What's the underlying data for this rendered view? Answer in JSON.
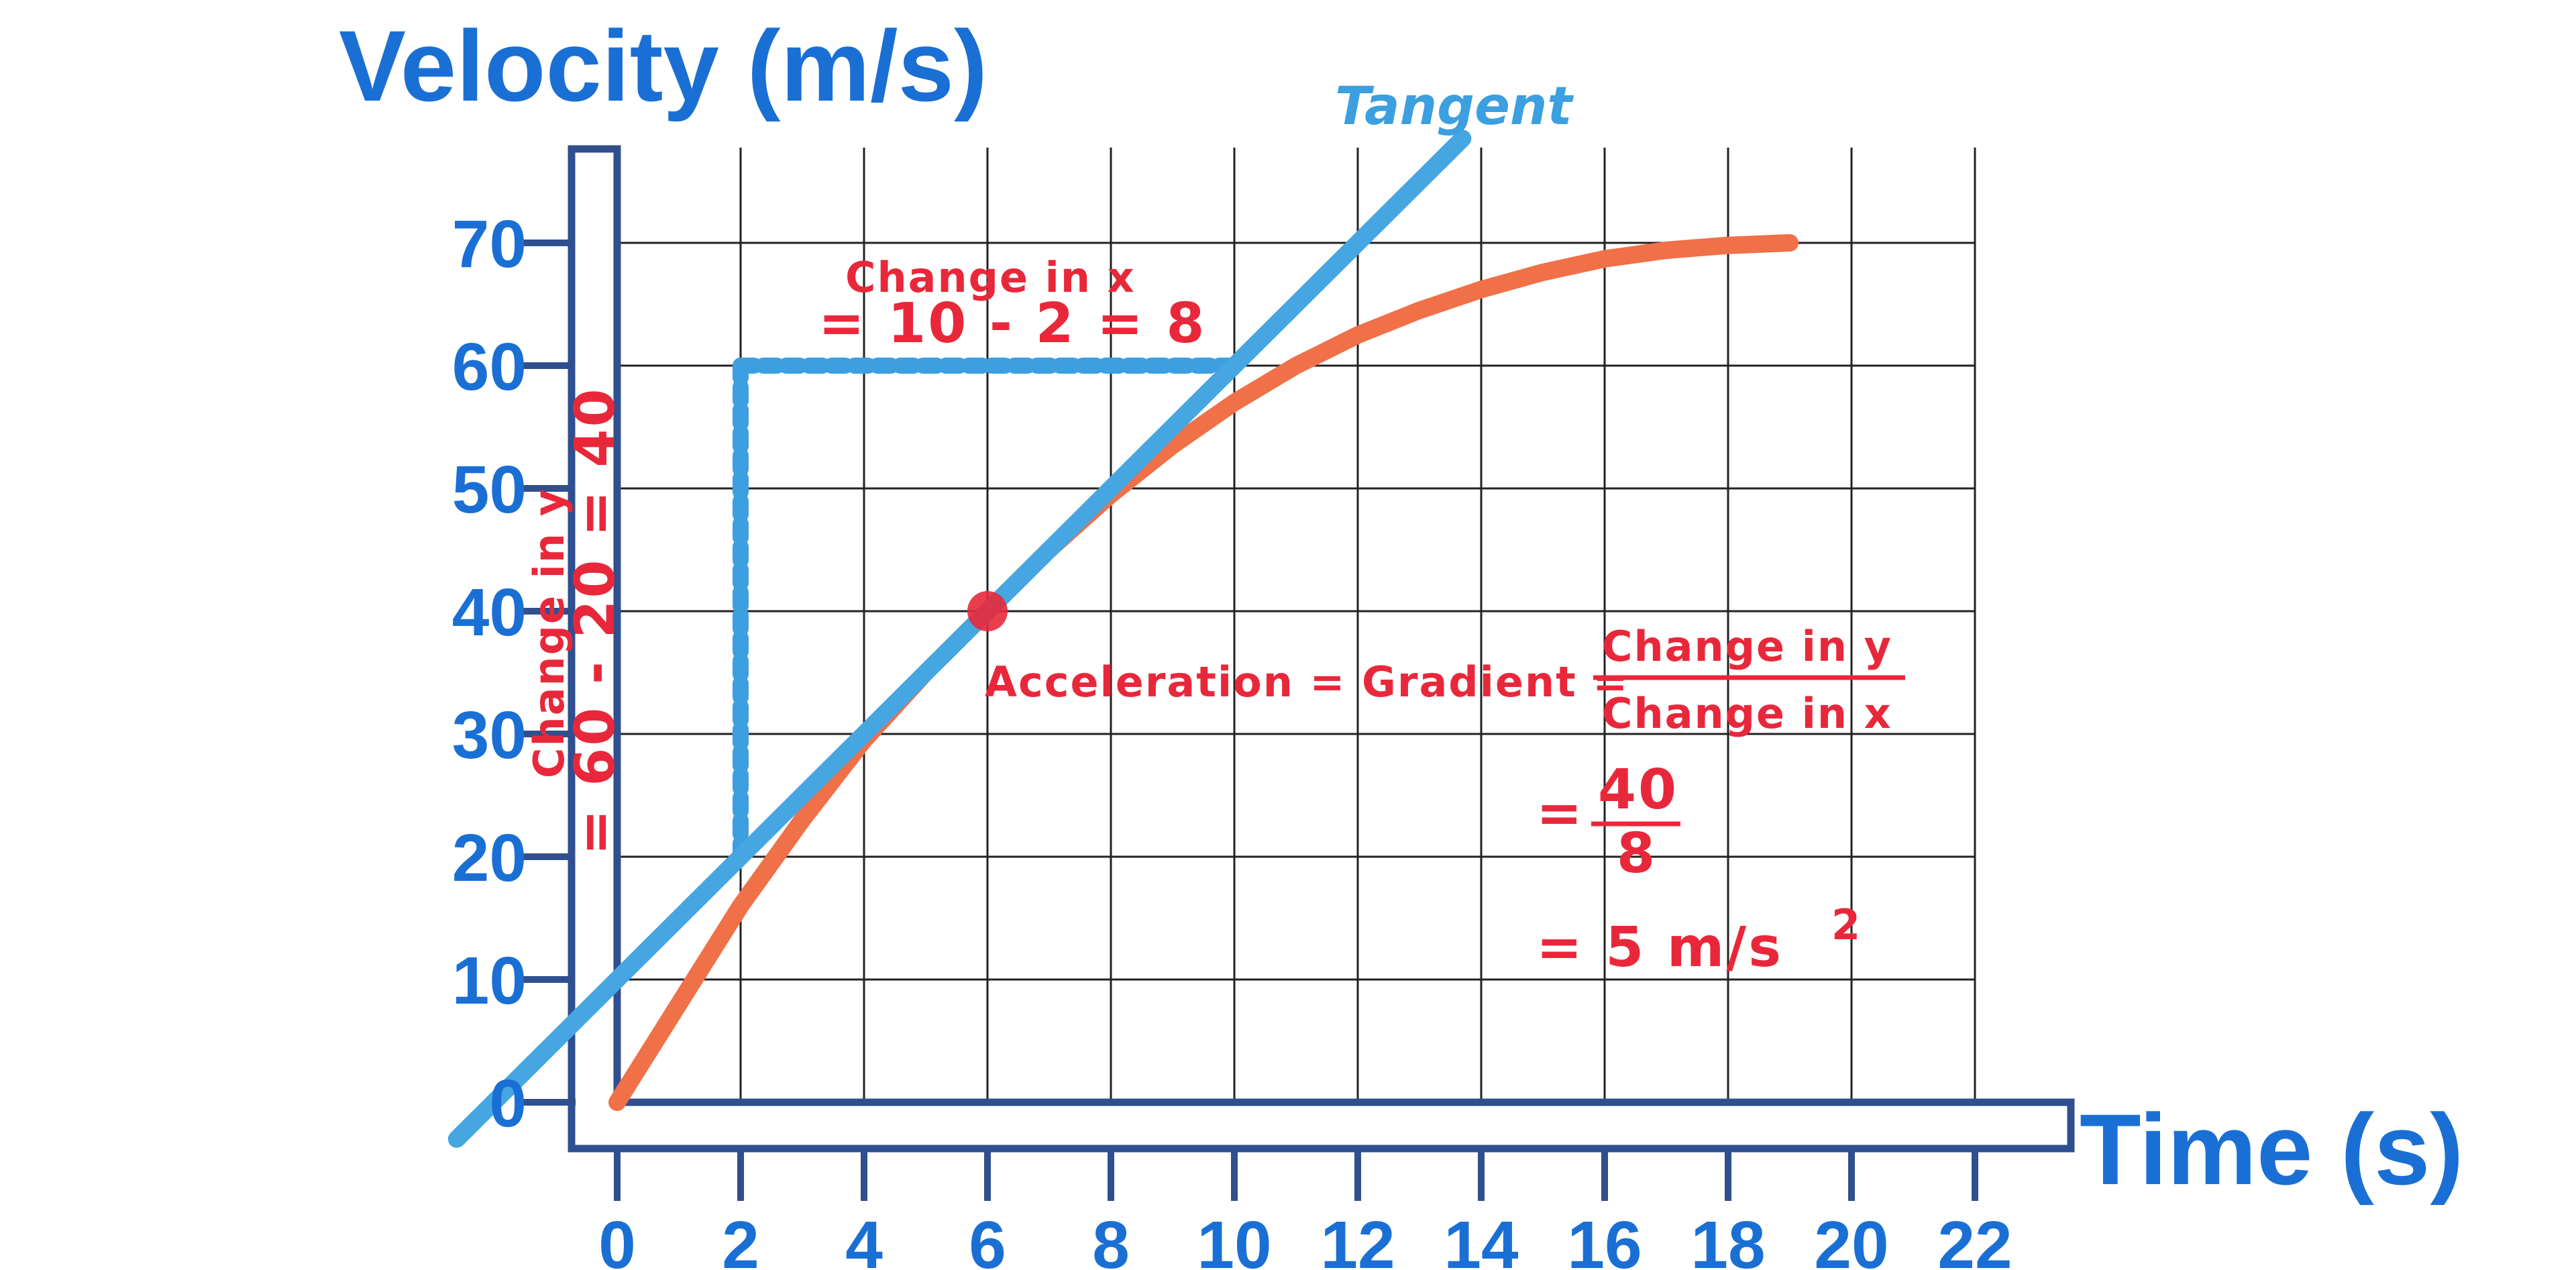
{
  "chart_data": {
    "type": "line",
    "xlabel": "Time (s)",
    "ylabel": "Velocity (m/s)",
    "xlim": [
      0,
      22
    ],
    "ylim": [
      0,
      70
    ],
    "x_ticks": [
      "0",
      "2",
      "4",
      "6",
      "8",
      "10",
      "12",
      "14",
      "16",
      "18",
      "20",
      "22"
    ],
    "y_ticks": [
      "0",
      "10",
      "20",
      "30",
      "40",
      "50",
      "60",
      "70"
    ],
    "grid": true,
    "series": [
      {
        "kind": "curve",
        "color": "#f07048",
        "x": [
          0,
          1,
          2,
          3,
          4,
          5,
          6,
          7,
          8,
          9,
          10,
          11,
          12,
          13,
          14,
          15,
          16,
          17,
          18,
          19
        ],
        "y": [
          0,
          8,
          16,
          23,
          29.5,
          35,
          40,
          45,
          49.5,
          53.5,
          57,
          60,
          62.5,
          64.5,
          66.2,
          67.6,
          68.7,
          69.4,
          69.8,
          70
        ]
      },
      {
        "kind": "tangent",
        "name": "Tangent",
        "color": "#45a6e2",
        "x": [
          -2.6,
          13.7
        ],
        "y": [
          -3,
          78.5
        ]
      }
    ],
    "point": {
      "x": 6,
      "y": 40,
      "color": "#e8283a"
    },
    "dashed_guides": {
      "color": "#3b9fe0",
      "vertical": {
        "x": 2,
        "y": [
          20,
          60
        ]
      },
      "horizontal": {
        "y": 60,
        "x": [
          2,
          10
        ]
      }
    },
    "annotations": {
      "change_x_line1": "Change in x",
      "change_x_line2": "= 10 - 2 = 8",
      "change_y_line1": "Change in y",
      "change_y_line2": "= 60 - 20 = 40",
      "accel_prefix": "Acceleration = Gradient =",
      "frac_num": "Change in y",
      "frac_den": "Change in x",
      "eq2_sign": "=",
      "eq2_num": "40",
      "eq2_den": "8",
      "eq3": "= 5 m/s",
      "eq3_sup": "2"
    }
  }
}
